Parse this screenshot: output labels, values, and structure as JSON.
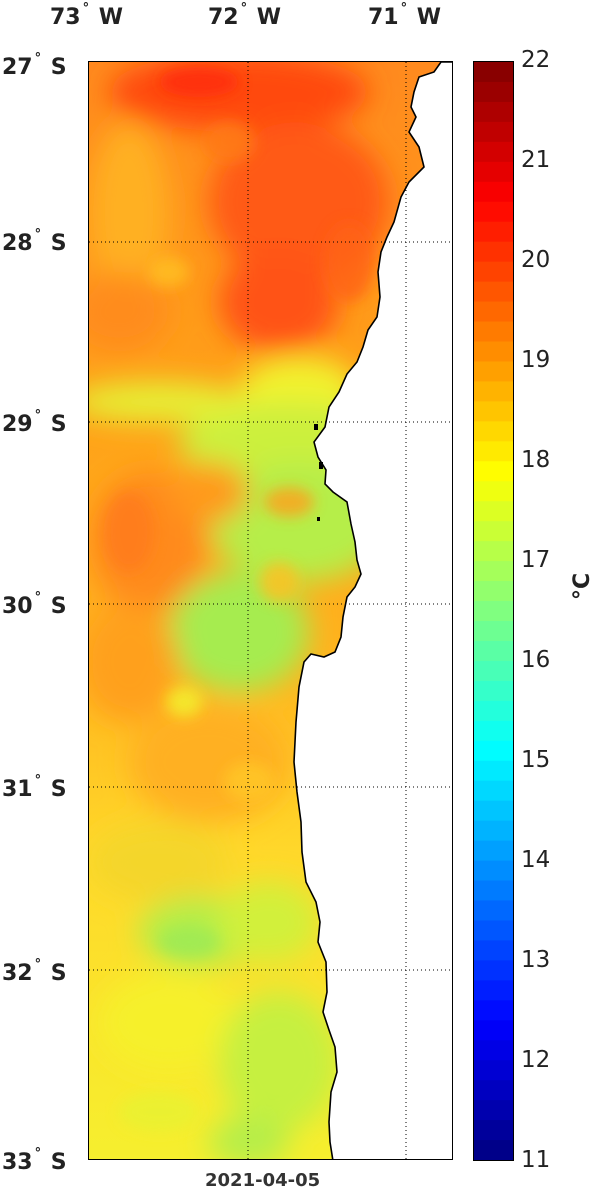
{
  "lon_labels": [
    {
      "deg": "73",
      "dir": "W"
    },
    {
      "deg": "72",
      "dir": "W"
    },
    {
      "deg": "71",
      "dir": "W"
    }
  ],
  "lat_labels": [
    {
      "deg": "27",
      "dir": "S"
    },
    {
      "deg": "28",
      "dir": "S"
    },
    {
      "deg": "29",
      "dir": "S"
    },
    {
      "deg": "30",
      "dir": "S"
    },
    {
      "deg": "31",
      "dir": "S"
    },
    {
      "deg": "32",
      "dir": "S"
    },
    {
      "deg": "33",
      "dir": "S"
    }
  ],
  "degree_symbol": "°",
  "colorbar": {
    "ticks": [
      "22",
      "21",
      "20",
      "19",
      "18",
      "17",
      "16",
      "15",
      "14",
      "13",
      "12",
      "11"
    ],
    "min": 11,
    "max": 22,
    "unit_label": "°C",
    "colormap": "jet"
  },
  "date_label": "2021-04-05",
  "colors": {
    "ocean_warm": "#ff5a14",
    "ocean_mid": "#ffc81e",
    "ocean_cool": "#a8ec4c",
    "land": "#ffffff",
    "grid": "#000000"
  }
}
